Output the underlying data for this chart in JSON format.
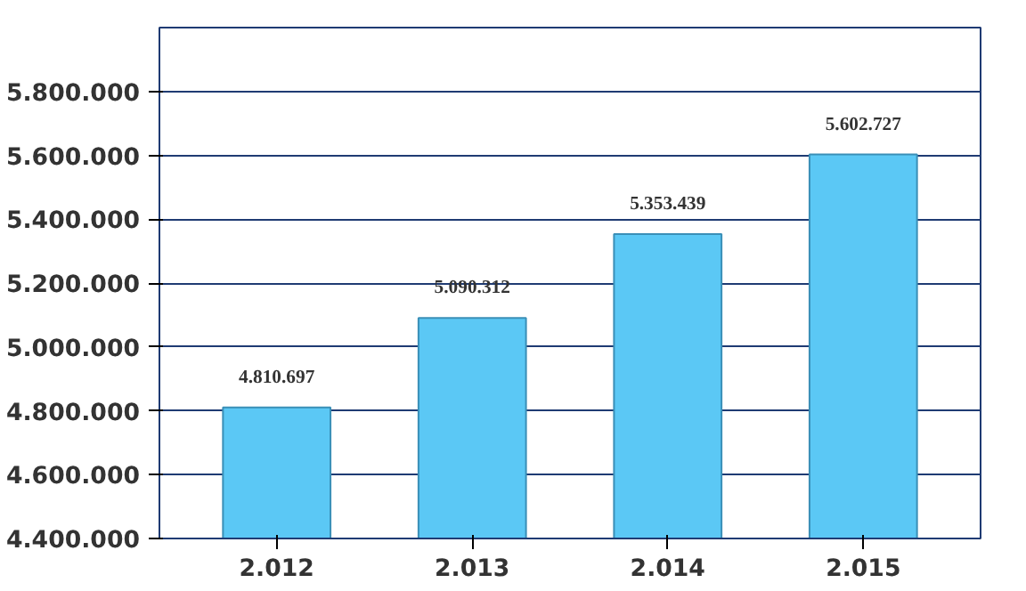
{
  "chart_data": {
    "type": "bar",
    "categories": [
      "2.012",
      "2.013",
      "2.014",
      "2.015"
    ],
    "values": [
      4810697,
      5090312,
      5353439,
      5602727
    ],
    "value_labels": [
      "4.810.697",
      "5.090.312",
      "5.353.439",
      "5.602.727"
    ],
    "color": "#5bc8f5",
    "ylim": [
      4400000,
      6000000
    ],
    "yticks": [
      {
        "value": 4400000,
        "label": "4.400.000"
      },
      {
        "value": 4600000,
        "label": "4.600.000"
      },
      {
        "value": 4800000,
        "label": "4.800.000"
      },
      {
        "value": 5000000,
        "label": "5.000.000"
      },
      {
        "value": 5200000,
        "label": "5.200.000"
      },
      {
        "value": 5400000,
        "label": "5.400.000"
      },
      {
        "value": 5600000,
        "label": "5.600.000"
      },
      {
        "value": 5800000,
        "label": "5.800.000"
      }
    ],
    "grid": "y"
  }
}
